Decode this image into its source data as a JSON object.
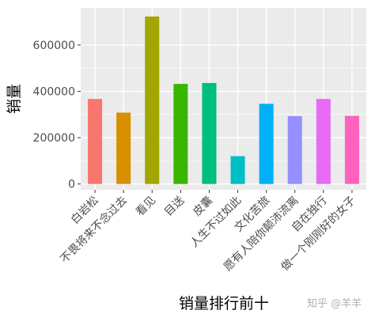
{
  "chart_data": {
    "type": "bar",
    "title": "",
    "xlabel": "销量排行前十",
    "ylabel": "销量",
    "categories": [
      "白岩松",
      "不畏将来不念过去",
      "看见",
      "目送",
      "皮囊",
      "人生不过如此",
      "文化苦旅",
      "愿有人陪你颠沛流离",
      "自在独行",
      "做一个刚刚好的女子"
    ],
    "values": [
      367000,
      308000,
      723000,
      432000,
      436000,
      120000,
      346000,
      293000,
      367000,
      294000
    ],
    "colors": [
      "#F8766D",
      "#D89000",
      "#A3A500",
      "#39B600",
      "#00BF7D",
      "#00BFC4",
      "#00B0F6",
      "#9590FF",
      "#E76BF3",
      "#FF62BC"
    ],
    "yticks": [
      0,
      200000,
      400000,
      600000
    ],
    "ytick_labels": [
      "0",
      "200000",
      "400000",
      "600000"
    ],
    "ylim": [
      -25000,
      760000
    ],
    "grid": true,
    "legend": "none",
    "panel_background": "#EBEBEB"
  },
  "watermark": "知乎 @羊羊"
}
